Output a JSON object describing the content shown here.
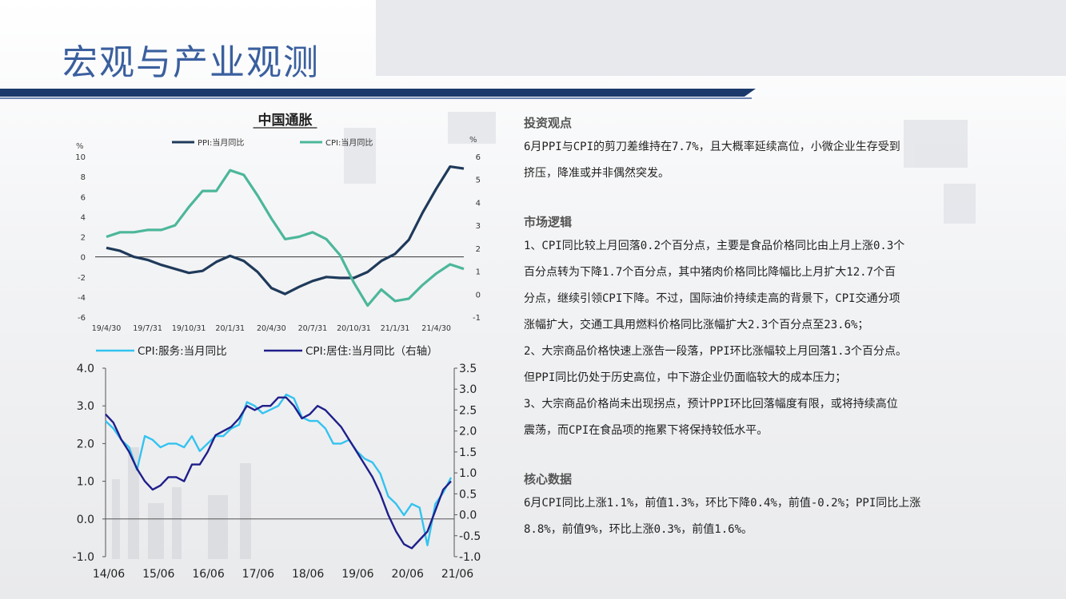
{
  "page": {
    "title": "宏观与产业观测"
  },
  "chart_data": [
    {
      "type": "line",
      "title": "中国通胀",
      "left_axis_label": "%",
      "right_axis_label": "%",
      "x_tick_labels": [
        "19/4/30",
        "19/7/31",
        "19/10/31",
        "20/1/31",
        "20/4/30",
        "20/7/31",
        "20/10/31",
        "21/1/31",
        "21/4/30"
      ],
      "x": [
        "19/4",
        "19/5",
        "19/6",
        "19/7",
        "19/8",
        "19/9",
        "19/10",
        "19/11",
        "19/12",
        "20/1",
        "20/2",
        "20/3",
        "20/4",
        "20/5",
        "20/6",
        "20/7",
        "20/8",
        "20/9",
        "20/10",
        "20/11",
        "20/12",
        "21/1",
        "21/2",
        "21/3",
        "21/4",
        "21/5",
        "21/6"
      ],
      "ylim_left": [
        -6,
        10
      ],
      "yticks_left": [
        "10",
        "8",
        "6",
        "4",
        "2",
        "0",
        "-2",
        "-4",
        "-6"
      ],
      "ylim_right": [
        -1,
        6
      ],
      "yticks_right": [
        "6",
        "5",
        "4",
        "3",
        "2",
        "1",
        "0",
        "-1"
      ],
      "series": [
        {
          "name": "PPI:当月同比",
          "axis": "left",
          "color": "#1f3a5a",
          "values": [
            0.9,
            0.6,
            0.0,
            -0.3,
            -0.8,
            -1.2,
            -1.6,
            -1.4,
            -0.5,
            0.1,
            -0.4,
            -1.5,
            -3.1,
            -3.7,
            -3.0,
            -2.4,
            -2.0,
            -2.1,
            -2.1,
            -1.5,
            -0.4,
            0.3,
            1.7,
            4.4,
            6.8,
            9.0,
            8.8
          ]
        },
        {
          "name": "CPI:当月同比",
          "axis": "right",
          "color": "#4cb79a",
          "values": [
            2.5,
            2.7,
            2.7,
            2.8,
            2.8,
            3.0,
            3.8,
            4.5,
            4.5,
            5.4,
            5.2,
            4.3,
            3.3,
            2.4,
            2.5,
            2.7,
            2.4,
            1.7,
            0.5,
            -0.5,
            0.2,
            -0.3,
            -0.2,
            0.4,
            0.9,
            1.3,
            1.1
          ]
        }
      ]
    },
    {
      "type": "line",
      "x_tick_labels": [
        "14/06",
        "15/06",
        "16/06",
        "17/06",
        "18/06",
        "19/06",
        "20/06",
        "21/06"
      ],
      "ylim_left": [
        -1.0,
        4.0
      ],
      "yticks_left": [
        "4.0",
        "3.0",
        "2.0",
        "1.0",
        "0.0",
        "-1.0"
      ],
      "ylim_right": [
        -1.0,
        3.5
      ],
      "yticks_right": [
        "3.5",
        "3.0",
        "2.5",
        "2.0",
        "1.5",
        "1.0",
        "0.5",
        "0.0",
        "-0.5",
        "-1.0"
      ],
      "series": [
        {
          "name": "CPI:服务:当月同比",
          "axis": "left",
          "color": "#33c3f0",
          "values": [
            2.6,
            2.4,
            2.1,
            1.9,
            1.3,
            2.2,
            2.1,
            1.9,
            2.0,
            2.0,
            1.9,
            2.2,
            1.8,
            2.0,
            2.2,
            2.2,
            2.4,
            2.5,
            3.1,
            3.0,
            2.8,
            2.9,
            3.0,
            3.3,
            3.2,
            2.7,
            2.6,
            2.6,
            2.4,
            2.0,
            2.0,
            2.1,
            1.8,
            1.6,
            1.5,
            1.2,
            0.6,
            0.4,
            0.1,
            0.4,
            0.3,
            -0.7,
            0.4,
            0.7,
            1.1
          ]
        },
        {
          "name": "CPI:居住:当月同比（右轴）",
          "axis": "right",
          "color": "#1f1f8a",
          "values": [
            2.4,
            2.2,
            1.8,
            1.5,
            1.1,
            0.8,
            0.6,
            0.7,
            0.9,
            0.9,
            0.8,
            1.2,
            1.2,
            1.5,
            1.9,
            2.0,
            2.1,
            2.3,
            2.6,
            2.5,
            2.6,
            2.6,
            2.8,
            2.8,
            2.6,
            2.3,
            2.4,
            2.6,
            2.5,
            2.3,
            2.1,
            1.8,
            1.5,
            1.2,
            0.9,
            0.5,
            0.0,
            -0.4,
            -0.7,
            -0.8,
            -0.6,
            -0.4,
            0.1,
            0.6,
            0.8
          ]
        }
      ]
    }
  ],
  "panel": {
    "sections": [
      {
        "title": "投资观点",
        "lines": [
          "6月PPI与CPI的剪刀差维持在7.7%，且大概率延续高位，小微企业生存受到",
          "挤压，降准或并非偶然突发。"
        ]
      },
      {
        "title": "市场逻辑",
        "lines": [
          "1、CPI同比较上月回落0.2个百分点，主要是食品价格同比由上月上涨0.3个",
          "百分点转为下降1.7个百分点，其中猪肉价格同比降幅比上月扩大12.7个百",
          "分点，继续引领CPI下降。不过，国际油价持续走高的背景下，CPI交通分项",
          "涨幅扩大，交通工具用燃料价格同比涨幅扩大2.3个百分点至23.6%；",
          "2、大宗商品价格快速上涨告一段落，PPI环比涨幅较上月回落1.3个百分点。",
          "但PPI同比仍处于历史高位，中下游企业仍面临较大的成本压力；",
          "3、大宗商品价格尚未出现拐点，预计PPI环比回落幅度有限，或将持续高位",
          "震荡，而CPI在食品项的拖累下将保持较低水平。"
        ]
      },
      {
        "title": "核心数据",
        "lines": [
          "6月CPI同比上涨1.1%，前值1.3%，环比下降0.4%，前值-0.2%；PPI同比上涨",
          "8.8%，前值9%，环比上涨0.3%，前值1.6%。"
        ]
      }
    ]
  }
}
